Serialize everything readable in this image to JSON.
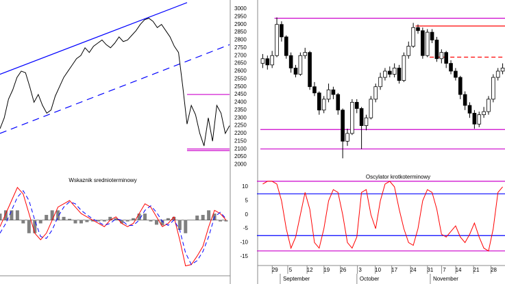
{
  "chart_data": [
    {
      "type": "line",
      "color": "#000000",
      "ylim": [
        1980,
        3057
      ],
      "yticks": [
        2000,
        2050,
        2100,
        2150,
        2200,
        2250,
        2300,
        2350,
        2400,
        2450,
        2500,
        2550,
        2600,
        2650,
        2700,
        2750,
        2800,
        2850,
        2900,
        2950,
        3000
      ],
      "values": [
        2230,
        2300,
        2420,
        2480,
        2560,
        2600,
        2590,
        2500,
        2400,
        2450,
        2380,
        2330,
        2350,
        2440,
        2500,
        2560,
        2600,
        2640,
        2680,
        2700,
        2750,
        2720,
        2760,
        2780,
        2800,
        2770,
        2750,
        2780,
        2820,
        2790,
        2800,
        2830,
        2860,
        2900,
        2930,
        2940,
        2920,
        2880,
        2900,
        2860,
        2820,
        2760,
        2720,
        2500,
        2260,
        2380,
        2320,
        2200,
        2120,
        2300,
        2150,
        2380,
        2330,
        2200,
        2250
      ],
      "trend_lines": [
        {
          "color": "#0000ff",
          "dash": false,
          "points": [
            [
              0,
              2580
            ],
            [
              44,
              3040
            ]
          ]
        },
        {
          "color": "#0000ff",
          "dash": true,
          "points": [
            [
              0,
              2200
            ],
            [
              54,
              2770
            ]
          ]
        }
      ],
      "levels": [
        {
          "value": 2450,
          "color": "#cc00cc",
          "from": 44,
          "dash": false
        },
        {
          "value": 2100,
          "color": "#cc00cc",
          "from": 44,
          "dash": false
        },
        {
          "value": 2090,
          "color": "#cc00cc",
          "from": 44,
          "dash": false
        }
      ]
    },
    {
      "type": "candlestick",
      "ylim": [
        1980,
        3057
      ],
      "up_color": "#ffffff",
      "down_color": "#000000",
      "open": [
        2650,
        2680,
        2640,
        2700,
        2900,
        2820,
        2700,
        2620,
        2580,
        2700,
        2720,
        2500,
        2460,
        2350,
        2420,
        2480,
        2450,
        2350,
        2150,
        2200,
        2400,
        2360,
        2250,
        2300,
        2420,
        2500,
        2560,
        2600,
        2580,
        2620,
        2540,
        2700,
        2760,
        2880,
        2860,
        2700,
        2850,
        2800,
        2680,
        2720,
        2650,
        2600,
        2560,
        2450,
        2380,
        2330,
        2260,
        2320,
        2340,
        2420,
        2560,
        2600
      ],
      "high": [
        2710,
        2700,
        2730,
        2945,
        2920,
        2830,
        2720,
        2640,
        2720,
        2750,
        2730,
        2530,
        2470,
        2440,
        2520,
        2500,
        2460,
        2360,
        2230,
        2420,
        2420,
        2370,
        2320,
        2440,
        2520,
        2590,
        2620,
        2630,
        2650,
        2640,
        2720,
        2790,
        2910,
        2900,
        2880,
        2870,
        2870,
        2820,
        2740,
        2730,
        2670,
        2620,
        2570,
        2470,
        2400,
        2350,
        2340,
        2370,
        2440,
        2580,
        2620,
        2650
      ],
      "low": [
        2620,
        2610,
        2620,
        2690,
        2790,
        2680,
        2590,
        2560,
        2570,
        2680,
        2480,
        2440,
        2320,
        2330,
        2400,
        2420,
        2320,
        2040,
        2120,
        2190,
        2330,
        2100,
        2220,
        2290,
        2400,
        2480,
        2540,
        2560,
        2560,
        2520,
        2530,
        2680,
        2750,
        2840,
        2680,
        2690,
        2780,
        2660,
        2650,
        2620,
        2580,
        2540,
        2420,
        2350,
        2300,
        2230,
        2240,
        2300,
        2320,
        2400,
        2540,
        2580
      ],
      "close": [
        2680,
        2640,
        2700,
        2900,
        2820,
        2700,
        2620,
        2580,
        2700,
        2720,
        2500,
        2460,
        2350,
        2420,
        2480,
        2450,
        2350,
        2150,
        2200,
        2400,
        2360,
        2250,
        2300,
        2420,
        2500,
        2560,
        2600,
        2580,
        2620,
        2540,
        2700,
        2760,
        2880,
        2860,
        2700,
        2850,
        2800,
        2680,
        2720,
        2650,
        2600,
        2560,
        2450,
        2380,
        2330,
        2260,
        2320,
        2340,
        2420,
        2560,
        2600,
        2620
      ],
      "levels": [
        {
          "value": 2940,
          "color": "#cc00cc",
          "from": 3,
          "dash": false
        },
        {
          "value": 2225,
          "color": "#cc00cc",
          "from": 0,
          "dash": false
        },
        {
          "value": 2100,
          "color": "#cc00cc",
          "from": 0,
          "dash": false
        },
        {
          "value": 2890,
          "color": "#ff0000",
          "from": 33,
          "dash": false
        },
        {
          "value": 2690,
          "color": "#ff0000",
          "from": 36,
          "dash": true
        }
      ]
    },
    {
      "type": "macd",
      "title": "Wskaznik srednioterminowy",
      "ylim": [
        -82,
        52
      ],
      "series": [
        {
          "color": "#ff0000",
          "dash": false,
          "values": [
            -10,
            10,
            30,
            50,
            40,
            10,
            -20,
            -30,
            -20,
            0,
            20,
            25,
            30,
            20,
            10,
            5,
            0,
            -5,
            -10,
            0,
            5,
            -5,
            -10,
            -5,
            10,
            25,
            20,
            5,
            -10,
            -5,
            5,
            -30,
            -70,
            -68,
            -55,
            -40,
            -10,
            15,
            10,
            0
          ]
        },
        {
          "color": "#0000ff",
          "dash": true,
          "values": [
            -20,
            -5,
            15,
            35,
            45,
            30,
            0,
            -25,
            -28,
            -15,
            5,
            20,
            28,
            25,
            15,
            8,
            2,
            -3,
            -8,
            -5,
            2,
            0,
            -8,
            -8,
            0,
            15,
            22,
            12,
            -2,
            -8,
            0,
            -15,
            -50,
            -68,
            -62,
            -48,
            -25,
            5,
            12,
            2
          ]
        }
      ],
      "histogram": {
        "color": "#808080",
        "values": [
          10,
          15,
          15,
          15,
          -5,
          -20,
          -20,
          -5,
          8,
          15,
          15,
          5,
          2,
          -5,
          -5,
          -3,
          -2,
          -2,
          -2,
          5,
          3,
          -5,
          -2,
          3,
          10,
          10,
          -2,
          -7,
          -8,
          3,
          5,
          -15,
          -20,
          0,
          7,
          8,
          15,
          10,
          -2,
          -2
        ]
      }
    },
    {
      "type": "oscillator",
      "title": "Oscylator krotkoterminowy",
      "ylim": [
        -17.5,
        13.2
      ],
      "yticks": [
        10,
        5,
        0,
        -5,
        -10,
        -15
      ],
      "points": 52,
      "series": [
        {
          "color": "#ff0000",
          "values": [
            11,
            12,
            12,
            11,
            5,
            -5,
            -12,
            -8,
            0,
            8,
            2,
            -10,
            -12,
            -5,
            5,
            9,
            8,
            0,
            -10,
            -12,
            -8,
            8,
            9,
            0,
            -5,
            5,
            11,
            12,
            10,
            2,
            -5,
            -10,
            -11,
            -5,
            5,
            9,
            8,
            2,
            -7,
            -8,
            -6,
            -4,
            -8,
            -10,
            -7,
            -3,
            -8,
            -12,
            -13,
            -5,
            8,
            10
          ]
        }
      ],
      "levels": [
        {
          "value": 12,
          "color": "#cc00cc"
        },
        {
          "value": 7.5,
          "color": "#0000ff"
        },
        {
          "value": -7.5,
          "color": "#0000ff"
        },
        {
          "value": -13,
          "color": "#cc00cc"
        }
      ],
      "xticks": [
        {
          "value": 2.6,
          "label": "29"
        },
        {
          "value": 5.9,
          "label": "5"
        },
        {
          "value": 10,
          "label": "12"
        },
        {
          "value": 13.6,
          "label": "19"
        },
        {
          "value": 17.1,
          "label": "26"
        },
        {
          "value": 20.7,
          "label": "3"
        },
        {
          "value": 24.5,
          "label": "10"
        },
        {
          "value": 28,
          "label": "17"
        },
        {
          "value": 32,
          "label": "24"
        },
        {
          "value": 35.6,
          "label": "31"
        },
        {
          "value": 38.6,
          "label": "7"
        },
        {
          "value": 41.6,
          "label": "14"
        },
        {
          "value": 45.4,
          "label": "21"
        },
        {
          "value": 49.1,
          "label": "28"
        }
      ],
      "month_ticks": [
        {
          "value": 4.3,
          "label": "September"
        },
        {
          "value": 20.6,
          "label": "October"
        },
        {
          "value": 36.2,
          "label": "November"
        }
      ]
    }
  ]
}
